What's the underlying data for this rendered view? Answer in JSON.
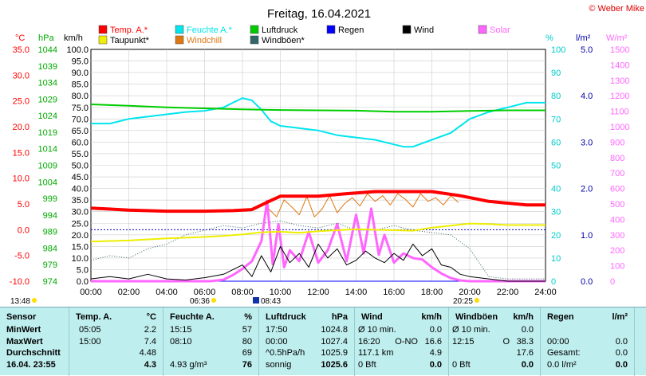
{
  "title": "Freitag, 16.04.2021",
  "copyright": "© Weber Mike",
  "colors": {
    "temp": "#ff0000",
    "humidity": "#00e5ee",
    "pressure": "#00cc00",
    "dewpoint": "#eeee00",
    "windchill": "#dd7711",
    "wind": "#000000",
    "gust": "#336666",
    "rain": "#0000ff",
    "solar": "#ff66ff",
    "axis_temp": "#ff0000",
    "axis_hpa": "#00aa00",
    "axis_hum": "#00cccc",
    "axis_rain": "#0000aa",
    "axis_solar": "#ff66ff",
    "panel_bg": "#bfeeee"
  },
  "legend": [
    {
      "label": "Temp. A.*",
      "color": "#ff0000"
    },
    {
      "label": "Feuchte A.*",
      "color": "#00e5ee"
    },
    {
      "label": "Luftdruck",
      "color": "#00cc00"
    },
    {
      "label": "Regen",
      "color": "#0000ff"
    },
    {
      "label": "Wind",
      "color": "#000000"
    },
    {
      "label": "Solar",
      "color": "#ff66ff"
    },
    {
      "label": "Taupunkt*",
      "color": "#eeee00"
    },
    {
      "label": "Windchill",
      "color": "#dd7711"
    },
    {
      "label": "Windböen*",
      "color": "#336666"
    }
  ],
  "axis_units": {
    "temp": "°C",
    "hpa": "hPa",
    "kmh": "km/h",
    "hum": "%",
    "rain": "l/m²",
    "solar": "W/m²"
  },
  "chart_data": {
    "type": "line",
    "title": "Freitag, 16.04.2021",
    "x_ticks": [
      "00:00",
      "02:00",
      "04:00",
      "06:00",
      "08:00",
      "10:00",
      "12:00",
      "14:00",
      "16:00",
      "18:00",
      "20:00",
      "22:00",
      "24:00"
    ],
    "xlim": [
      0,
      24
    ],
    "axes": {
      "temp": {
        "ticks": [
          "35.0",
          "30.0",
          "25.0",
          "20.0",
          "15.0",
          "10.0",
          "5.0",
          "0.0",
          "-5.0",
          "-10.0"
        ],
        "range": [
          -10,
          35
        ]
      },
      "hpa": {
        "ticks": [
          "1044",
          "1039",
          "1034",
          "1029",
          "1024",
          "1019",
          "1014",
          "1009",
          "1004",
          "999",
          "994",
          "989",
          "984",
          "979",
          "974"
        ],
        "range": [
          974,
          1044
        ]
      },
      "kmh": {
        "ticks": [
          "100.0",
          "95.0",
          "90.0",
          "85.0",
          "80.0",
          "75.0",
          "70.0",
          "65.0",
          "60.0",
          "55.0",
          "50.0",
          "45.0",
          "40.0",
          "35.0",
          "30.0",
          "25.0",
          "20.0",
          "15.0",
          "10.0",
          "5.0",
          "0.0"
        ],
        "range": [
          0,
          100
        ]
      },
      "hum": {
        "ticks": [
          "100",
          "90",
          "80",
          "70",
          "60",
          "50",
          "40",
          "30",
          "20",
          "10",
          "0"
        ],
        "range": [
          0,
          100
        ]
      },
      "rain": {
        "ticks": [
          "5.0",
          "4.0",
          "3.0",
          "2.0",
          "1.0",
          "0.0"
        ],
        "range": [
          0,
          5
        ]
      },
      "solar": {
        "ticks": [
          "1500",
          "1400",
          "1300",
          "1200",
          "1100",
          "1000",
          "900",
          "800",
          "700",
          "600",
          "500",
          "400",
          "300",
          "200",
          "100",
          "0"
        ],
        "range": [
          0,
          1500
        ]
      }
    },
    "series": [
      {
        "name": "Temp. A.*",
        "axis": "temp",
        "x": [
          0,
          2,
          4,
          6,
          7.5,
          8.5,
          9.4,
          10,
          12,
          13.5,
          15,
          16,
          18,
          19.5,
          21,
          23,
          24
        ],
        "values": [
          4.2,
          3.8,
          3.6,
          3.6,
          3.7,
          3.9,
          5.5,
          6.5,
          6.5,
          7.0,
          7.4,
          7.4,
          7.4,
          6.6,
          5.5,
          4.8,
          4.8
        ]
      },
      {
        "name": "Taupunkt*",
        "axis": "temp",
        "x": [
          0,
          2,
          4,
          6,
          7,
          8,
          9,
          10,
          11,
          12,
          13,
          14,
          16,
          17,
          18,
          19,
          20,
          21,
          22,
          24
        ],
        "values": [
          -2.3,
          -2.1,
          -1.7,
          -1.4,
          -1.2,
          -0.9,
          -0.5,
          -0.4,
          -0.6,
          -0.3,
          -0.1,
          0.1,
          -0.1,
          -0.2,
          0.4,
          0.8,
          1.2,
          1.1,
          0.9,
          0.9
        ]
      },
      {
        "name": "Windchill",
        "axis": "temp",
        "x": [
          9.4,
          9.8,
          10.2,
          10.6,
          11,
          11.4,
          11.8,
          12.2,
          12.6,
          13,
          13.4,
          13.8,
          14.2,
          14.6,
          15,
          15.4,
          15.8,
          16.2,
          16.6,
          17,
          17.4,
          17.8,
          18.2,
          18.6,
          19,
          19.4
        ],
        "values": [
          4.0,
          2.5,
          5.8,
          4.4,
          2.9,
          6.4,
          2.5,
          4.0,
          6.6,
          3.3,
          5.1,
          6.2,
          4.6,
          7.0,
          5.5,
          6.6,
          4.8,
          7.0,
          5.9,
          4.4,
          7.0,
          5.5,
          6.2,
          4.8,
          6.6,
          5.3
        ]
      },
      {
        "name": "Feuchte A.*",
        "axis": "hum",
        "x": [
          0,
          1,
          2,
          3,
          4,
          5,
          6,
          7,
          7.5,
          8,
          8.5,
          9,
          9.5,
          10,
          11,
          12,
          13,
          14,
          15,
          16,
          16.5,
          17,
          18,
          19,
          20,
          21,
          22,
          23,
          24
        ],
        "values": [
          68,
          68,
          70,
          71,
          72,
          73,
          73.5,
          75,
          77,
          79,
          78,
          74,
          69,
          67,
          66,
          65,
          63,
          62,
          61,
          59,
          58,
          58,
          61,
          64,
          70,
          73,
          75,
          77,
          77
        ]
      },
      {
        "name": "Luftdruck",
        "axis": "hpa",
        "x": [
          0,
          2,
          4,
          6,
          8,
          10,
          12,
          14,
          16,
          18,
          20,
          22,
          24
        ],
        "values": [
          1027.4,
          1027.0,
          1026.5,
          1026.2,
          1025.9,
          1025.7,
          1025.6,
          1025.5,
          1025.2,
          1025.2,
          1025.4,
          1025.6,
          1025.6
        ]
      },
      {
        "name": "Wind",
        "axis": "kmh",
        "x": [
          0,
          1,
          2,
          3,
          4,
          5,
          6,
          7,
          7.5,
          8,
          8.5,
          9,
          9.5,
          10,
          10.5,
          11,
          11.5,
          12,
          12.5,
          13,
          13.5,
          14,
          14.5,
          15,
          15.5,
          16,
          16.5,
          17,
          17.5,
          18,
          18.5,
          19,
          19.5,
          20,
          21,
          22,
          24
        ],
        "values": [
          1,
          2,
          1,
          3,
          1,
          0.5,
          1.5,
          3,
          5,
          7,
          2,
          11,
          4,
          15,
          8,
          12,
          6,
          16,
          10,
          14,
          7,
          9,
          13,
          10,
          8,
          12,
          9,
          16,
          11,
          14,
          7,
          6,
          3,
          2,
          1,
          0,
          0
        ]
      },
      {
        "name": "Windböen*",
        "axis": "kmh",
        "x": [
          0,
          1,
          2,
          3,
          4,
          5,
          6,
          7,
          8,
          9,
          10,
          11,
          12,
          13,
          14,
          15,
          16,
          17,
          18,
          19,
          20,
          21,
          22,
          24
        ],
        "values": [
          9,
          11,
          10,
          14,
          16,
          20,
          22,
          24,
          23,
          25,
          26,
          24,
          23,
          25,
          22,
          22,
          24,
          22,
          21,
          20,
          14,
          2,
          1,
          1
        ]
      },
      {
        "name": "Solar",
        "axis": "solar",
        "x": [
          0,
          6.3,
          7,
          7.5,
          8,
          8.5,
          9,
          9.3,
          9.6,
          9.9,
          10.2,
          10.5,
          11,
          11.5,
          12,
          12.5,
          13,
          13.5,
          14,
          14.4,
          14.8,
          15.2,
          15.5,
          16,
          16.5,
          17,
          17.5,
          18,
          18.5,
          19,
          19.5,
          20,
          24
        ],
        "values": [
          0,
          0,
          10,
          40,
          80,
          130,
          260,
          520,
          110,
          370,
          90,
          200,
          130,
          320,
          120,
          200,
          370,
          130,
          430,
          180,
          470,
          170,
          300,
          120,
          180,
          150,
          140,
          90,
          50,
          20,
          5,
          0,
          0
        ]
      },
      {
        "name": "Regen",
        "axis": "rain",
        "x": [
          0,
          24
        ],
        "values": [
          0,
          0
        ]
      }
    ]
  },
  "markers": {
    "sunrise": "06:36",
    "sunset": "20:25",
    "moonrise": "13:48",
    "note_time": "08:43"
  },
  "table": {
    "sensor": {
      "header": "Sensor",
      "rows": [
        "MinWert",
        "MaxWert",
        "Durchschnitt",
        "16.04.  23:55"
      ]
    },
    "temp": {
      "header": "Temp. A.",
      "unit": "°C",
      "rows": [
        [
          "05:05",
          "2.2"
        ],
        [
          "15:00",
          "7.4"
        ],
        [
          "",
          "4.48"
        ],
        [
          "",
          "4.3"
        ]
      ]
    },
    "hum": {
      "header": "Feuchte A.",
      "unit": "%",
      "rows": [
        [
          "15:15",
          "57"
        ],
        [
          "08:10",
          "80"
        ],
        [
          "",
          "69"
        ],
        [
          "4.93 g/m³",
          "76"
        ]
      ]
    },
    "press": {
      "header": "Luftdruck",
      "unit": "hPa",
      "rows": [
        [
          "17:50",
          "1024.8"
        ],
        [
          "00:00",
          "1027.4"
        ],
        [
          "^0.5hPa/h",
          "1025.9"
        ],
        [
          "sonnig",
          "1025.6"
        ]
      ]
    },
    "wind": {
      "header": "Wind",
      "unit": "km/h",
      "rows": [
        [
          "Ø 10 min.",
          "",
          "0.0"
        ],
        [
          "16:20",
          "O-NO",
          "16.6"
        ],
        [
          "117.1 km",
          "",
          "4.9"
        ],
        [
          "0 Bft",
          "",
          "0.0"
        ]
      ]
    },
    "gust": {
      "header": "Windböen",
      "unit": "km/h",
      "rows": [
        [
          "Ø 10 min.",
          "",
          "0.0"
        ],
        [
          "12:15",
          "O",
          "38.3"
        ],
        [
          "",
          "",
          "17.6"
        ],
        [
          "0 Bft",
          "",
          "0.0"
        ]
      ]
    },
    "rain": {
      "header": "Regen",
      "unit": "l/m²",
      "rows": [
        [
          "",
          ""
        ],
        [
          "00:00",
          "0.0"
        ],
        [
          "Gesamt:",
          "0.0"
        ],
        [
          "0.0 l/m²",
          "0.0"
        ]
      ]
    }
  }
}
